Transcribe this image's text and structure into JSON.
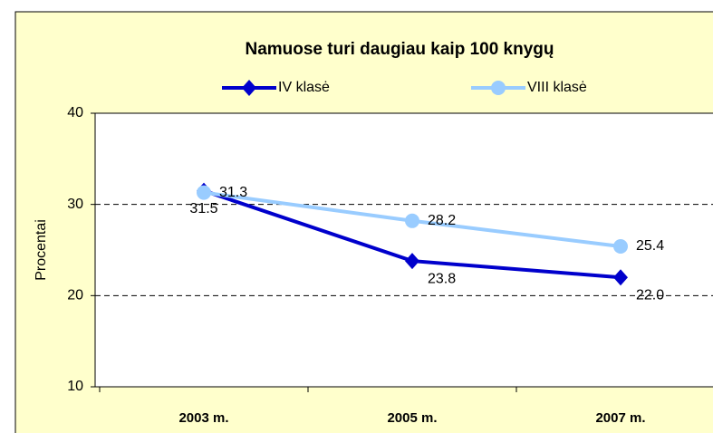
{
  "chart_data": {
    "type": "line",
    "title": "Namuose turi daugiau kaip 100 knygų",
    "y_label": "Procentai",
    "categories": [
      "2003 m.",
      "2005 m.",
      "2007 m."
    ],
    "series": [
      {
        "name": "IV klasė",
        "color": "#0000cc",
        "marker": "diamond",
        "values": [
          31.5,
          23.8,
          22.0
        ],
        "value_labels": [
          "31.5",
          "23.8",
          "22.0"
        ]
      },
      {
        "name": "VIII klasė",
        "color": "#99ccff",
        "marker": "circle",
        "values": [
          31.3,
          28.2,
          25.4
        ],
        "value_labels": [
          "31.3",
          "28.2",
          "25.4"
        ]
      }
    ],
    "ylim": [
      10,
      40
    ],
    "yticks": [
      10,
      20,
      30,
      40
    ],
    "grid": true,
    "legend": "top"
  }
}
